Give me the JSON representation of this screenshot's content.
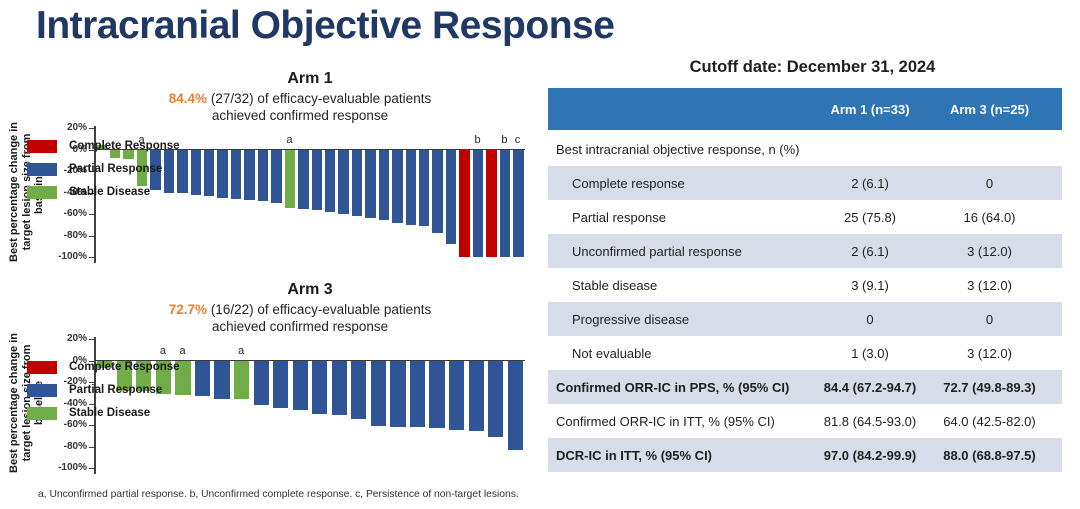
{
  "slide": {
    "title": "Intracranial Objective Response"
  },
  "cutoff_title": "Cutoff date: December 31, 2024",
  "footnote": "a, Unconfirmed partial response. b, Unconfirmed complete response. c, Persistence of non-target lesions.",
  "colors": {
    "complete_response": "#C00000",
    "partial_response": "#2F5597",
    "stable_disease": "#70AD47",
    "table_header_blue": "#2E75B6",
    "table_row_gray": "#D7DDE8",
    "title_navy": "#1F3864",
    "accent_orange": "#ED7D31"
  },
  "chart_data": [
    {
      "type": "bar",
      "title": "Arm 1",
      "subtitle_highlight": "84.4%",
      "subtitle_rest": " (27/32) of efficacy-evaluable patients",
      "subtitle_line2": "achieved confirmed response",
      "ylabel": "Best percentage change in target lesion size from baseline",
      "ylim": [
        -100,
        20
      ],
      "yticks": [
        20,
        0,
        -20,
        -40,
        -60,
        -80,
        -100
      ],
      "legend": [
        {
          "label": "Complete Response",
          "key": "CR"
        },
        {
          "label": "Partial Response",
          "key": "PR"
        },
        {
          "label": "Stable Disease",
          "key": "SD"
        }
      ],
      "bars": [
        {
          "v": 4,
          "c": "SD",
          "note": ""
        },
        {
          "v": -8,
          "c": "SD",
          "note": ""
        },
        {
          "v": -9,
          "c": "SD",
          "note": ""
        },
        {
          "v": -34,
          "c": "SD",
          "note": "a"
        },
        {
          "v": -38,
          "c": "PR",
          "note": ""
        },
        {
          "v": -40,
          "c": "PR",
          "note": ""
        },
        {
          "v": -40,
          "c": "PR",
          "note": ""
        },
        {
          "v": -42,
          "c": "PR",
          "note": ""
        },
        {
          "v": -43,
          "c": "PR",
          "note": ""
        },
        {
          "v": -45,
          "c": "PR",
          "note": ""
        },
        {
          "v": -46,
          "c": "PR",
          "note": ""
        },
        {
          "v": -47,
          "c": "PR",
          "note": ""
        },
        {
          "v": -48,
          "c": "PR",
          "note": ""
        },
        {
          "v": -50,
          "c": "PR",
          "note": ""
        },
        {
          "v": -54,
          "c": "SD",
          "note": "a"
        },
        {
          "v": -55,
          "c": "PR",
          "note": ""
        },
        {
          "v": -56,
          "c": "PR",
          "note": ""
        },
        {
          "v": -58,
          "c": "PR",
          "note": ""
        },
        {
          "v": -60,
          "c": "PR",
          "note": ""
        },
        {
          "v": -62,
          "c": "PR",
          "note": ""
        },
        {
          "v": -64,
          "c": "PR",
          "note": ""
        },
        {
          "v": -66,
          "c": "PR",
          "note": ""
        },
        {
          "v": -68,
          "c": "PR",
          "note": ""
        },
        {
          "v": -70,
          "c": "PR",
          "note": ""
        },
        {
          "v": -71,
          "c": "PR",
          "note": ""
        },
        {
          "v": -78,
          "c": "PR",
          "note": ""
        },
        {
          "v": -88,
          "c": "PR",
          "note": ""
        },
        {
          "v": -100,
          "c": "CR",
          "note": ""
        },
        {
          "v": -100,
          "c": "PR",
          "note": "b"
        },
        {
          "v": -100,
          "c": "CR",
          "note": ""
        },
        {
          "v": -100,
          "c": "PR",
          "note": "b"
        },
        {
          "v": -100,
          "c": "PR",
          "note": "c"
        }
      ]
    },
    {
      "type": "bar",
      "title": "Arm 3",
      "subtitle_highlight": "72.7%",
      "subtitle_rest": " (16/22) of efficacy-evaluable patients",
      "subtitle_line2": "achieved confirmed response",
      "ylabel": "Best percentage change in target lesion size from baseline",
      "ylim": [
        -100,
        20
      ],
      "yticks": [
        20,
        0,
        -20,
        -40,
        -60,
        -80,
        -100
      ],
      "legend": [
        {
          "label": "Complete Response",
          "key": "CR"
        },
        {
          "label": "Partial Response",
          "key": "PR"
        },
        {
          "label": "Stable Disease",
          "key": "SD"
        }
      ],
      "bars": [
        {
          "v": -7,
          "c": "SD",
          "note": ""
        },
        {
          "v": -28,
          "c": "SD",
          "note": ""
        },
        {
          "v": -28,
          "c": "SD",
          "note": ""
        },
        {
          "v": -31,
          "c": "SD",
          "note": "a"
        },
        {
          "v": -32,
          "c": "SD",
          "note": "a"
        },
        {
          "v": -33,
          "c": "PR",
          "note": ""
        },
        {
          "v": -36,
          "c": "PR",
          "note": ""
        },
        {
          "v": -36,
          "c": "SD",
          "note": "a"
        },
        {
          "v": -41,
          "c": "PR",
          "note": ""
        },
        {
          "v": -44,
          "c": "PR",
          "note": ""
        },
        {
          "v": -46,
          "c": "PR",
          "note": ""
        },
        {
          "v": -50,
          "c": "PR",
          "note": ""
        },
        {
          "v": -51,
          "c": "PR",
          "note": ""
        },
        {
          "v": -54,
          "c": "PR",
          "note": ""
        },
        {
          "v": -61,
          "c": "PR",
          "note": ""
        },
        {
          "v": -62,
          "c": "PR",
          "note": ""
        },
        {
          "v": -62,
          "c": "PR",
          "note": ""
        },
        {
          "v": -63,
          "c": "PR",
          "note": ""
        },
        {
          "v": -65,
          "c": "PR",
          "note": ""
        },
        {
          "v": -66,
          "c": "PR",
          "note": ""
        },
        {
          "v": -71,
          "c": "PR",
          "note": ""
        },
        {
          "v": -83,
          "c": "PR",
          "note": ""
        }
      ]
    }
  ],
  "table": {
    "header": [
      "",
      "Arm 1 (n=33)",
      "Arm 3 (n=25)"
    ],
    "rows": [
      {
        "label": "Best intracranial objective response, n (%)",
        "arm1": "",
        "arm3": "",
        "indent": false,
        "bold": false,
        "gray": false
      },
      {
        "label": "Complete response",
        "arm1": "2 (6.1)",
        "arm3": "0",
        "indent": true,
        "bold": false,
        "gray": true
      },
      {
        "label": "Partial response",
        "arm1": "25 (75.8)",
        "arm3": "16 (64.0)",
        "indent": true,
        "bold": false,
        "gray": false
      },
      {
        "label": "Unconfirmed partial response",
        "arm1": "2 (6.1)",
        "arm3": "3 (12.0)",
        "indent": true,
        "bold": false,
        "gray": true
      },
      {
        "label": "Stable disease",
        "arm1": "3 (9.1)",
        "arm3": "3 (12.0)",
        "indent": true,
        "bold": false,
        "gray": false
      },
      {
        "label": "Progressive disease",
        "arm1": "0",
        "arm3": "0",
        "indent": true,
        "bold": false,
        "gray": true
      },
      {
        "label": "Not evaluable",
        "arm1": "1 (3.0)",
        "arm3": "3 (12.0)",
        "indent": true,
        "bold": false,
        "gray": false
      },
      {
        "label": "Confirmed ORR-IC in PPS, % (95% CI)",
        "arm1": "84.4 (67.2-94.7)",
        "arm3": "72.7 (49.8-89.3)",
        "indent": false,
        "bold": true,
        "gray": true
      },
      {
        "label": "Confirmed ORR-IC in ITT, % (95% CI)",
        "arm1": "81.8 (64.5-93.0)",
        "arm3": "64.0 (42.5-82.0)",
        "indent": false,
        "bold": false,
        "gray": false
      },
      {
        "label": "DCR-IC in ITT, % (95% CI)",
        "arm1": "97.0 (84.2-99.9)",
        "arm3": "88.0 (68.8-97.5)",
        "indent": false,
        "bold": true,
        "gray": true
      }
    ]
  }
}
